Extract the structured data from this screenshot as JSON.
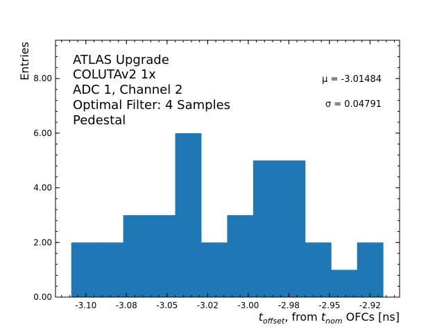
{
  "chart_data": {
    "type": "bar",
    "subtype": "histogram",
    "xlabel_parts": {
      "t1": "t",
      "sub1": "offset",
      "mid": ", from ",
      "t2": "t",
      "sub2": "nom",
      "end": " OFCs [ns]"
    },
    "ylabel": "Entries",
    "xlim": [
      -3.1187,
      -2.9068
    ],
    "ylim": [
      0,
      9.4
    ],
    "grid": false,
    "bar_color": "#1f77b4",
    "bin_edges": [
      -3.109,
      -3.093,
      -3.077,
      -3.061,
      -3.045,
      -3.029,
      -3.013,
      -2.997,
      -2.981,
      -2.965,
      -2.949,
      -2.933,
      -2.917
    ],
    "values": [
      2,
      2,
      3,
      3,
      6,
      2,
      3,
      5,
      5,
      2,
      1,
      2
    ],
    "x_ticks": [
      {
        "value": -3.1,
        "label": "-3.10"
      },
      {
        "value": -3.075,
        "label": "-3.08"
      },
      {
        "value": -3.05,
        "label": "-3.05"
      },
      {
        "value": -3.025,
        "label": "-3.02"
      },
      {
        "value": -3.0,
        "label": "-3.00"
      },
      {
        "value": -2.975,
        "label": "-2.98"
      },
      {
        "value": -2.95,
        "label": "-2.95"
      },
      {
        "value": -2.925,
        "label": "-2.92"
      }
    ],
    "y_ticks": [
      {
        "value": 0,
        "label": "0.00"
      },
      {
        "value": 2,
        "label": "2.00"
      },
      {
        "value": 4,
        "label": "4.00"
      },
      {
        "value": 6,
        "label": "6.00"
      },
      {
        "value": 8,
        "label": "8.00"
      }
    ],
    "annotations": {
      "info_lines": [
        "ATLAS Upgrade",
        "COLUTAv2 1x",
        "ADC 1, Channel 2",
        "Optimal Filter: 4 Samples",
        "Pedestal"
      ],
      "mu": "μ = -3.01484",
      "sigma": "σ = 0.04791"
    }
  }
}
